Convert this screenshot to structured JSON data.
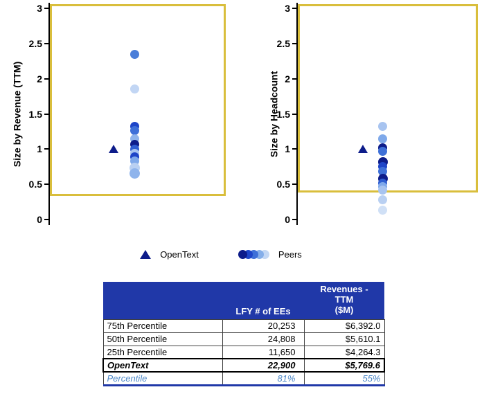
{
  "colors": {
    "opentext_marker": "#0D1C8A",
    "gold_box": "#D9BE3C",
    "table_header_bg": "#2038A8",
    "percentile_text": "#4D87C6"
  },
  "legend": {
    "opentext_label": "OpenText",
    "peers_label": "Peers",
    "peer_colors": [
      "#0D1C8A",
      "#1E45C8",
      "#3E70D8",
      "#85AEE9",
      "#C3D7F4"
    ]
  },
  "chart_data": [
    {
      "type": "scatter",
      "ylabel": "Size by Revenue (TTM)",
      "xlabel": "",
      "ylim": [
        0,
        3
      ],
      "yticks": [
        {
          "v": 3,
          "label": "3"
        },
        {
          "v": 2.5,
          "label": "2.5"
        },
        {
          "v": 2,
          "label": "2"
        },
        {
          "v": 1.5,
          "label": "1.5"
        },
        {
          "v": 1,
          "label": "1"
        },
        {
          "v": 0.5,
          "label": "0.5"
        },
        {
          "v": 0,
          "label": "0"
        }
      ],
      "highlight_box": {
        "ymin": 0.33,
        "ymax": 3.06,
        "color": "#D9BE3C"
      },
      "opentext": {
        "x": 0.37,
        "y": 1.0
      },
      "peers_x": 0.49,
      "peers": [
        {
          "y": 2.35,
          "color": "#4A7ED9",
          "r": 13
        },
        {
          "y": 1.85,
          "color": "#C2D6F4",
          "r": 13
        },
        {
          "y": 1.32,
          "color": "#1E45C8",
          "r": 13
        },
        {
          "y": 1.26,
          "color": "#3E70D8",
          "r": 13
        },
        {
          "y": 1.15,
          "color": "#8FB4EC",
          "r": 13
        },
        {
          "y": 1.07,
          "color": "#0D1C8A",
          "r": 13
        },
        {
          "y": 1.0,
          "color": "#2F5ED2",
          "r": 13
        },
        {
          "y": 0.94,
          "color": "#A8C4F0",
          "r": 13
        },
        {
          "y": 0.89,
          "color": "#1E45C8",
          "r": 13
        },
        {
          "y": 0.83,
          "color": "#7FA9EA",
          "r": 13
        },
        {
          "y": 0.73,
          "color": "#B9D0F2",
          "r": 15
        },
        {
          "y": 0.65,
          "color": "#8FB4EC",
          "r": 15
        }
      ]
    },
    {
      "type": "scatter",
      "ylabel": "Size by Headcount",
      "xlabel": "",
      "ylim": [
        0,
        3
      ],
      "yticks": [
        {
          "v": 3,
          "label": "3"
        },
        {
          "v": 2.5,
          "label": "2.5"
        },
        {
          "v": 2,
          "label": "2"
        },
        {
          "v": 1.5,
          "label": "1.5"
        },
        {
          "v": 1,
          "label": "1"
        },
        {
          "v": 0.5,
          "label": "0.5"
        },
        {
          "v": 0,
          "label": "0"
        }
      ],
      "highlight_box": {
        "ymin": 0.38,
        "ymax": 3.06,
        "color": "#D9BE3C"
      },
      "opentext": {
        "x": 0.37,
        "y": 1.0
      },
      "peers_x": 0.48,
      "peers": [
        {
          "y": 1.32,
          "color": "#A8C4F0",
          "r": 13
        },
        {
          "y": 1.15,
          "color": "#7FA9EA",
          "r": 13
        },
        {
          "y": 1.02,
          "color": "#0D1C8A",
          "r": 13
        },
        {
          "y": 0.97,
          "color": "#3E70D8",
          "r": 13
        },
        {
          "y": 0.82,
          "color": "#0D1C8A",
          "r": 14
        },
        {
          "y": 0.75,
          "color": "#1E45C8",
          "r": 13
        },
        {
          "y": 0.68,
          "color": "#3E70D8",
          "r": 13
        },
        {
          "y": 0.58,
          "color": "#0D1C8A",
          "r": 14
        },
        {
          "y": 0.52,
          "color": "#2F5ED2",
          "r": 13
        },
        {
          "y": 0.47,
          "color": "#7FA9EA",
          "r": 13
        },
        {
          "y": 0.42,
          "color": "#A8C4F0",
          "r": 13
        },
        {
          "y": 0.28,
          "color": "#B9D0F2",
          "r": 13
        },
        {
          "y": 0.13,
          "color": "#D0E0F6",
          "r": 13
        }
      ]
    }
  ],
  "table": {
    "headers": {
      "label": "",
      "ees": "LFY # of EEs",
      "rev": "Revenues -\nTTM\n($M)"
    },
    "rows": [
      {
        "label": "75th Percentile",
        "ees": "20,253",
        "rev": "$6,392.0"
      },
      {
        "label": "50th Percentile",
        "ees": "24,808",
        "rev": "$5,610.1"
      },
      {
        "label": "25th Percentile",
        "ees": "11,650",
        "rev": "$4,264.3"
      }
    ],
    "opentext": {
      "label": "OpenText",
      "ees": "22,900",
      "rev": "$5,769.6"
    },
    "percentile": {
      "label": "Percentile",
      "ees": "81%",
      "rev": "55%"
    }
  }
}
